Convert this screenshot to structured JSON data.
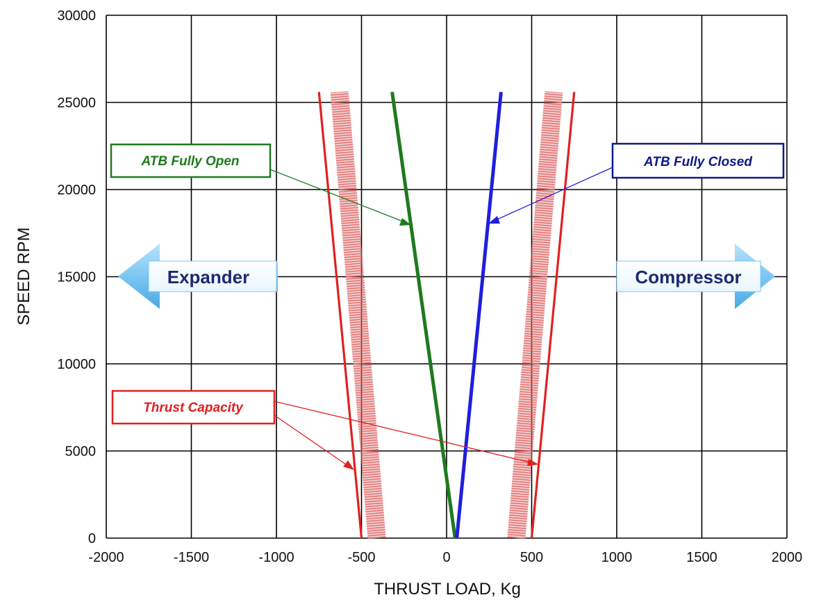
{
  "chart_data": {
    "type": "line",
    "title": "",
    "xlabel": "THRUST LOAD, Kg",
    "ylabel": "SPEED RPM",
    "xlim": [
      -2000,
      2000
    ],
    "ylim": [
      0,
      30000
    ],
    "x_ticks": [
      "-2000",
      "-1500",
      "-1000",
      "-500",
      "0",
      "500",
      "1000",
      "1500",
      "2000"
    ],
    "y_ticks": [
      "0",
      "5000",
      "10000",
      "15000",
      "20000",
      "25000",
      "30000"
    ],
    "grid": true,
    "series": [
      {
        "color": "#1e7a1e",
        "x": [
          50,
          -320
        ],
        "y": [
          0,
          25600
        ]
      },
      {
        "color": "#1f1fdc",
        "x": [
          60,
          320
        ],
        "y": [
          0,
          25600
        ]
      },
      {
        "color": "#e02020",
        "x": [
          -500,
          -750
        ],
        "y": [
          0,
          25600
        ]
      },
      {
        "color": "#e02020",
        "x": [
          500,
          750
        ],
        "y": [
          0,
          25600
        ]
      }
    ],
    "bands": [
      {
        "color": "#e06a6a",
        "x": [
          -410,
          -630
        ],
        "y": [
          0,
          25600
        ]
      },
      {
        "color": "#e06a6a",
        "x": [
          410,
          630
        ],
        "y": [
          0,
          25600
        ]
      }
    ],
    "annotations": [
      {
        "text": "ATB Fully Open",
        "color": "#1e7a1e"
      },
      {
        "text": "ATB Fully Closed",
        "color": "#0b1a8a"
      },
      {
        "text": "Thrust Capacity",
        "color": "#e02020"
      }
    ],
    "direction_labels": [
      {
        "text": "Expander",
        "direction": "left"
      },
      {
        "text": "Compressor",
        "direction": "right"
      }
    ]
  }
}
